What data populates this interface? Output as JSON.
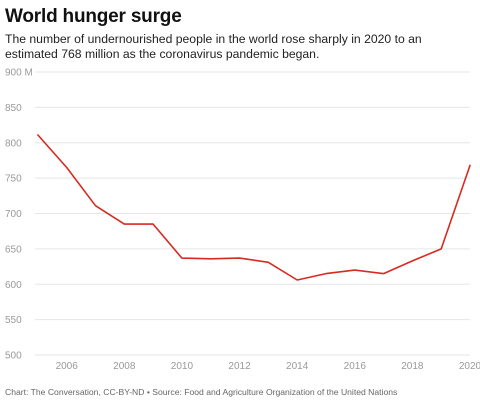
{
  "title": "World hunger surge",
  "subtitle": "The number of undernourished people in the world rose sharply in 2020 to an estimated 768 million as the coronavirus pandemic began.",
  "footer": "Chart: The Conversation, CC-BY-ND • Source: Food and Agriculture Organization of the United Nations",
  "colors": {
    "line": "#d62a22",
    "grid": "#e6e6e6",
    "tick": "#999999"
  },
  "chart_data": {
    "type": "line",
    "title": "World hunger surge",
    "xlabel": "",
    "ylabel": "",
    "xlim": [
      2004.9,
      2020
    ],
    "ylim": [
      500,
      900
    ],
    "y_ticks": [
      500,
      550,
      600,
      650,
      700,
      750,
      800,
      850,
      900
    ],
    "y_tick_labels": [
      "500",
      "550",
      "600",
      "650",
      "700",
      "750",
      "800",
      "850",
      "900 M"
    ],
    "x_ticks": [
      2006,
      2008,
      2010,
      2012,
      2014,
      2016,
      2018,
      2020
    ],
    "x_tick_labels": [
      "2006",
      "2008",
      "2010",
      "2012",
      "2014",
      "2016",
      "2018",
      "2020"
    ],
    "grid": true,
    "series": [
      {
        "x": [
          2005,
          2006,
          2007,
          2008,
          2009,
          2010,
          2011,
          2012,
          2013,
          2014,
          2015,
          2016,
          2017,
          2018,
          2019,
          2020
        ],
        "values": [
          811,
          765,
          711,
          685,
          685,
          637,
          636,
          637,
          631,
          606,
          615,
          620,
          615,
          633,
          650,
          768
        ]
      }
    ]
  }
}
